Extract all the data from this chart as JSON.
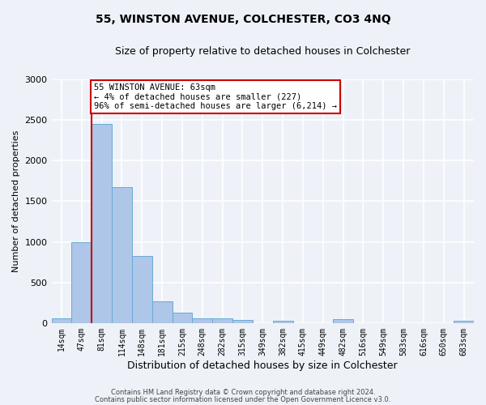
{
  "title": "55, WINSTON AVENUE, COLCHESTER, CO3 4NQ",
  "subtitle": "Size of property relative to detached houses in Colchester",
  "xlabel": "Distribution of detached houses by size in Colchester",
  "ylabel": "Number of detached properties",
  "bar_labels": [
    "14sqm",
    "47sqm",
    "81sqm",
    "114sqm",
    "148sqm",
    "181sqm",
    "215sqm",
    "248sqm",
    "282sqm",
    "315sqm",
    "349sqm",
    "382sqm",
    "415sqm",
    "449sqm",
    "482sqm",
    "516sqm",
    "549sqm",
    "583sqm",
    "616sqm",
    "650sqm",
    "683sqm"
  ],
  "bar_values": [
    60,
    1000,
    2450,
    1670,
    830,
    270,
    125,
    55,
    55,
    35,
    0,
    30,
    0,
    0,
    50,
    0,
    0,
    0,
    0,
    0,
    30
  ],
  "bar_color": "#aec6e8",
  "bar_edge_color": "#6aaad4",
  "ylim": [
    0,
    3000
  ],
  "yticks": [
    0,
    500,
    1000,
    1500,
    2000,
    2500,
    3000
  ],
  "red_line_color": "#cc0000",
  "annotation_title": "55 WINSTON AVENUE: 63sqm",
  "annotation_line1": "← 4% of detached houses are smaller (227)",
  "annotation_line2": "96% of semi-detached houses are larger (6,214) →",
  "annotation_box_color": "#ffffff",
  "annotation_box_edgecolor": "#cc0000",
  "footer1": "Contains HM Land Registry data © Crown copyright and database right 2024.",
  "footer2": "Contains public sector information licensed under the Open Government Licence v3.0.",
  "bg_color": "#eef2f8",
  "grid_color": "#ffffff"
}
